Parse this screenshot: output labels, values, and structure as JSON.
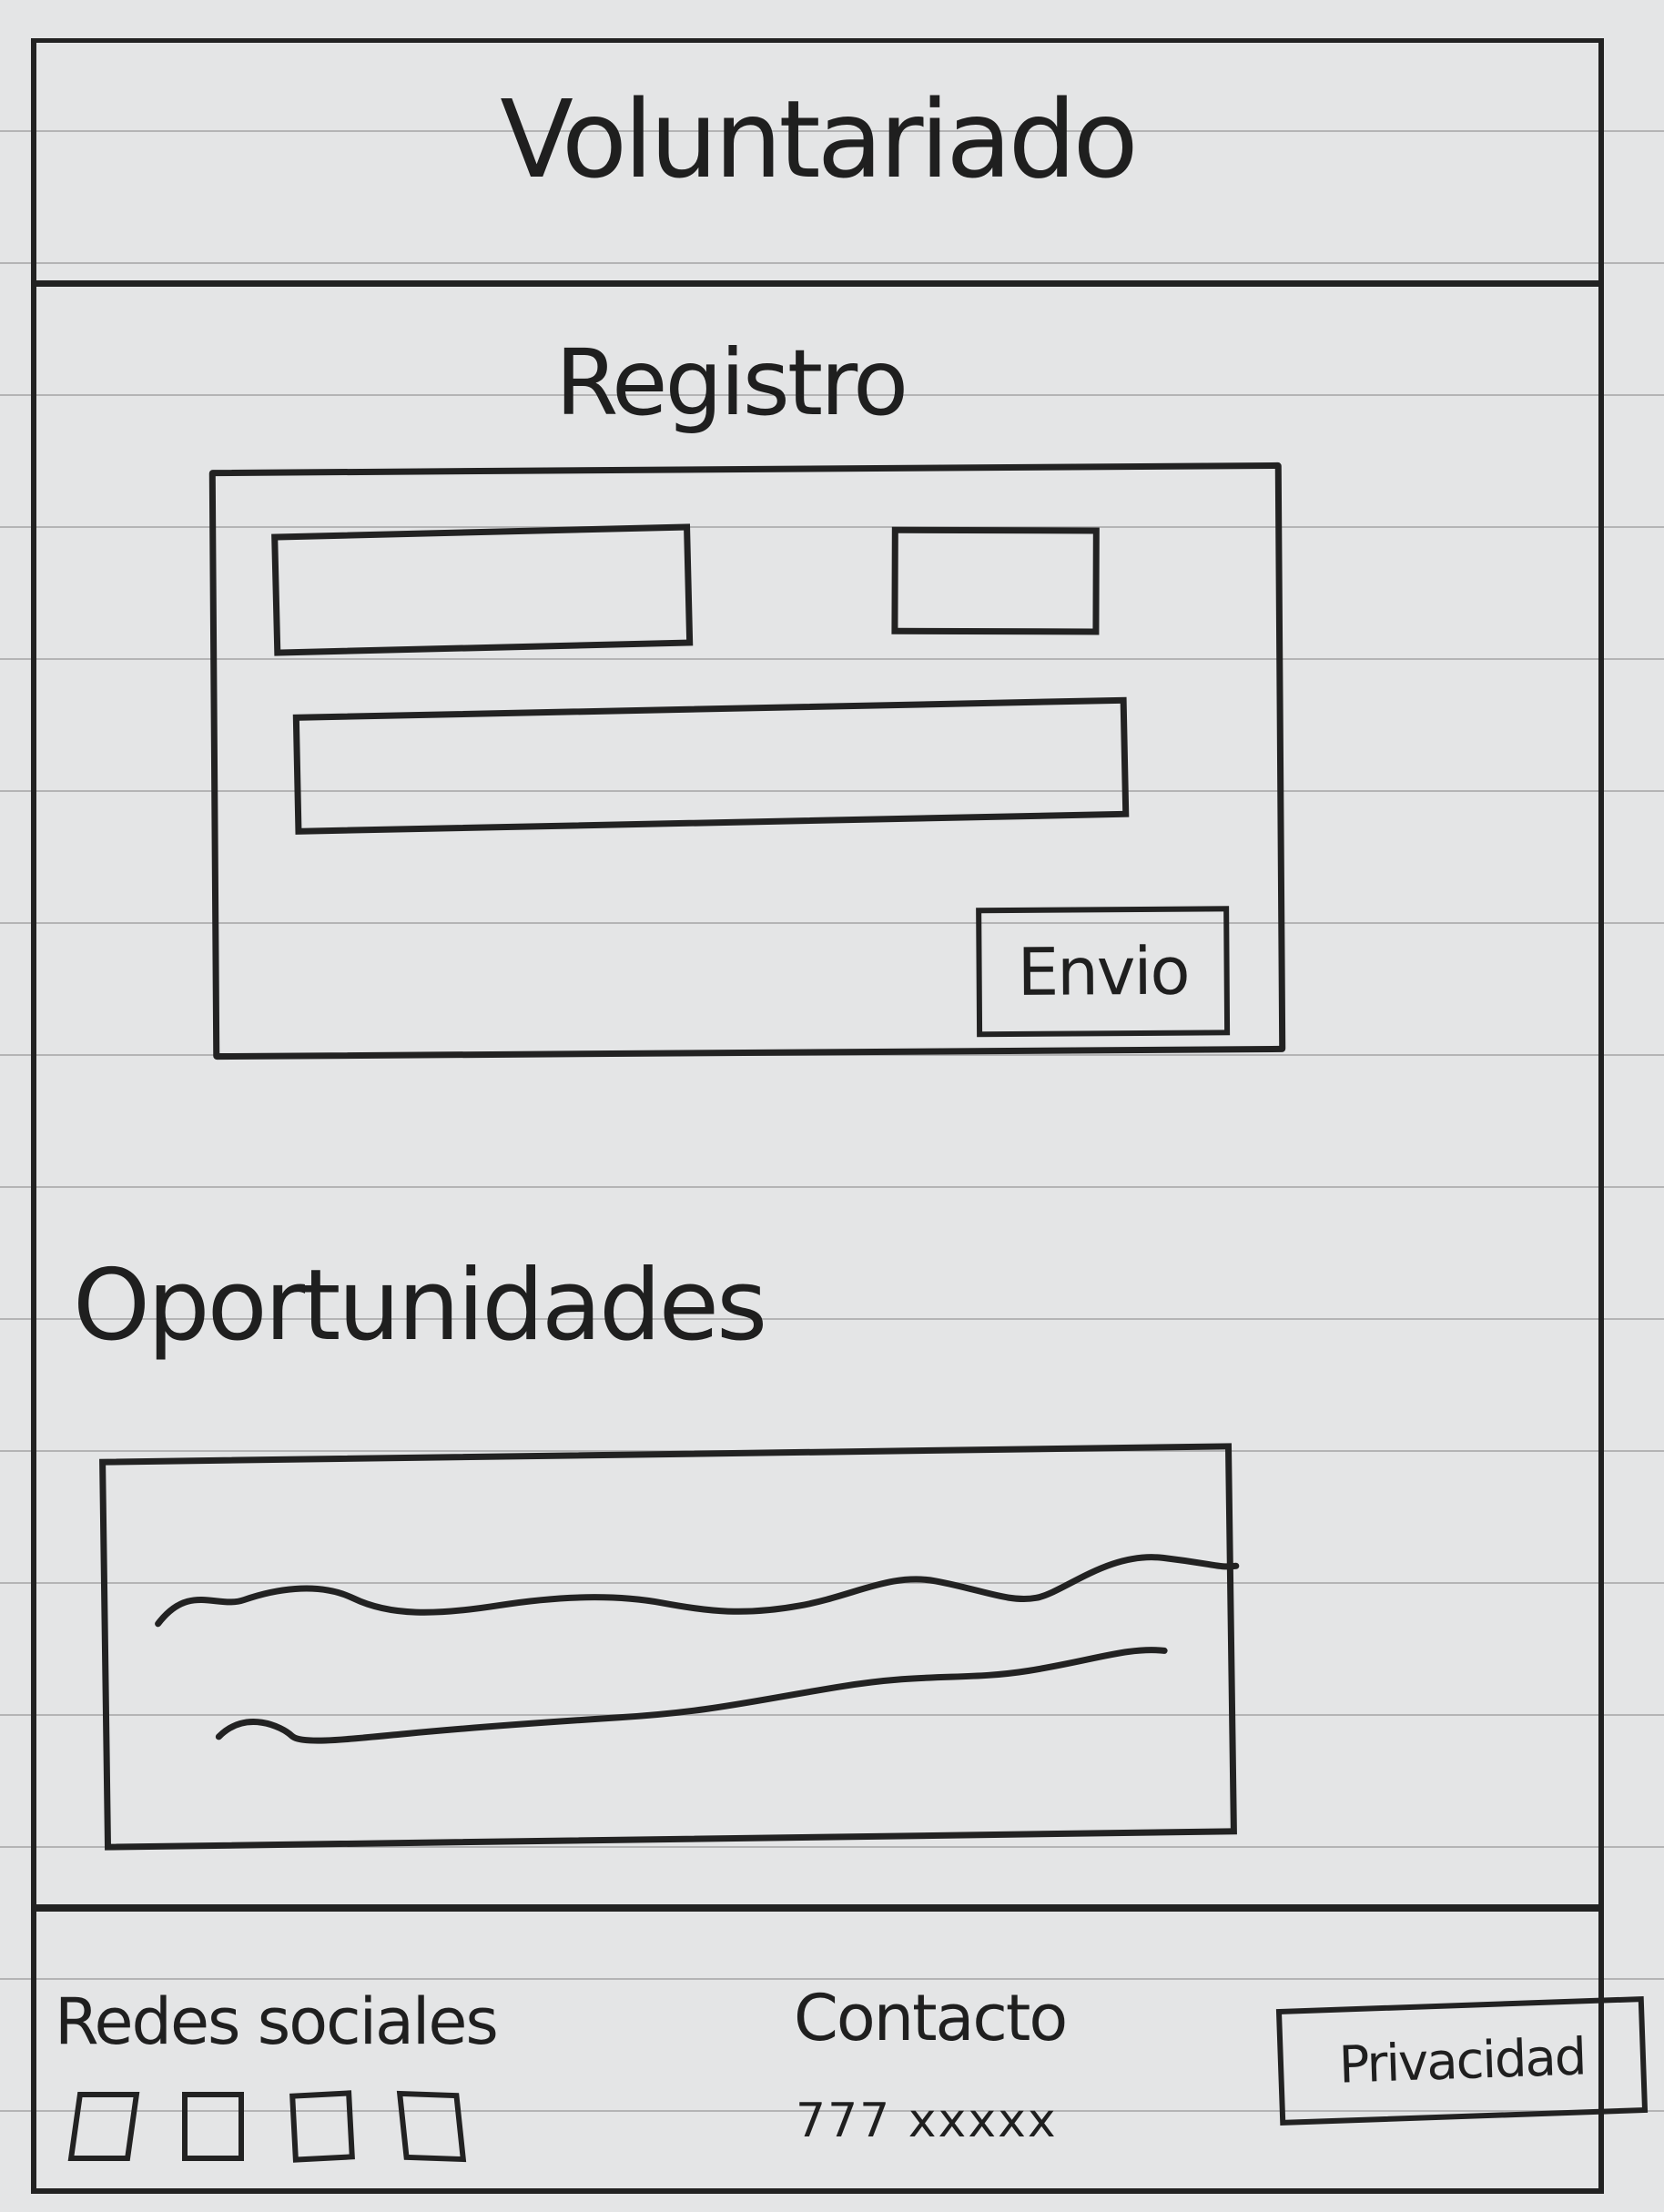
{
  "header": {
    "title": "Voluntariado"
  },
  "registration": {
    "title": "Registro",
    "send_label": "Envio"
  },
  "opportunities": {
    "title": "Oportunidades"
  },
  "footer": {
    "social_label": "Redes sociales",
    "contact_label": "Contacto",
    "contact_phone": "777 xxxxx",
    "privacy_label": "Privacidad"
  },
  "icons": {
    "social": [
      "social-icon",
      "social-icon",
      "social-icon",
      "social-icon"
    ]
  },
  "colors": {
    "ink": "#222222",
    "paper": "#e4e5e6"
  }
}
